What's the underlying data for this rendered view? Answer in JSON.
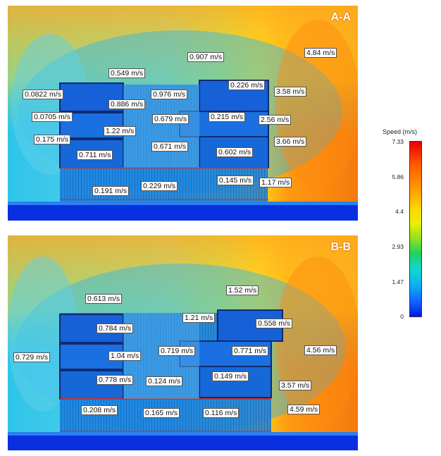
{
  "panel_a": {
    "title": "A-A",
    "labels": [
      {
        "text": "0.907 m/s"
      },
      {
        "text": "4.84 m/s"
      },
      {
        "text": "0.549 m/s"
      },
      {
        "text": "0.226 m/s"
      },
      {
        "text": "3.58 m/s"
      },
      {
        "text": "0.0822 m/s"
      },
      {
        "text": "0.976 m/s"
      },
      {
        "text": "0.886 m/s"
      },
      {
        "text": "0.0705 m/s"
      },
      {
        "text": "0.679 m/s"
      },
      {
        "text": "0.215 m/s"
      },
      {
        "text": "2.56 m/s"
      },
      {
        "text": "1.22 m/s"
      },
      {
        "text": "0.175 m/s"
      },
      {
        "text": "3.66 m/s"
      },
      {
        "text": "0.711 m/s"
      },
      {
        "text": "0.671 m/s"
      },
      {
        "text": "0.602 m/s"
      },
      {
        "text": "0.145 m/s"
      },
      {
        "text": "1.17 m/s"
      },
      {
        "text": "0.229 m/s"
      },
      {
        "text": "0.191 m/s"
      }
    ]
  },
  "panel_b": {
    "title": "B-B",
    "labels": [
      {
        "text": "1.52 m/s"
      },
      {
        "text": "0.613 m/s"
      },
      {
        "text": "1.21 m/s"
      },
      {
        "text": "0.558 m/s"
      },
      {
        "text": "0.784 m/s"
      },
      {
        "text": "4.56 m/s"
      },
      {
        "text": "0.729 m/s"
      },
      {
        "text": "1.04 m/s"
      },
      {
        "text": "0.719 m/s"
      },
      {
        "text": "0.771 m/s"
      },
      {
        "text": "0.778 m/s"
      },
      {
        "text": "0.124 m/s"
      },
      {
        "text": "0.149 m/s"
      },
      {
        "text": "3.57 m/s"
      },
      {
        "text": "0.208 m/s"
      },
      {
        "text": "0.165 m/s"
      },
      {
        "text": "0.116 m/s"
      },
      {
        "text": "4.59 m/s"
      }
    ]
  },
  "legend": {
    "title": "Speed (m/s)",
    "ticks": [
      "7.33",
      "5.86",
      "4.4",
      "2.93",
      "1.47",
      "0"
    ],
    "colors": {
      "max": "#e60000",
      "high": "#ff9a00",
      "mid": "#e8f000",
      "low": "#10d8d0",
      "min": "#0018e0"
    }
  }
}
